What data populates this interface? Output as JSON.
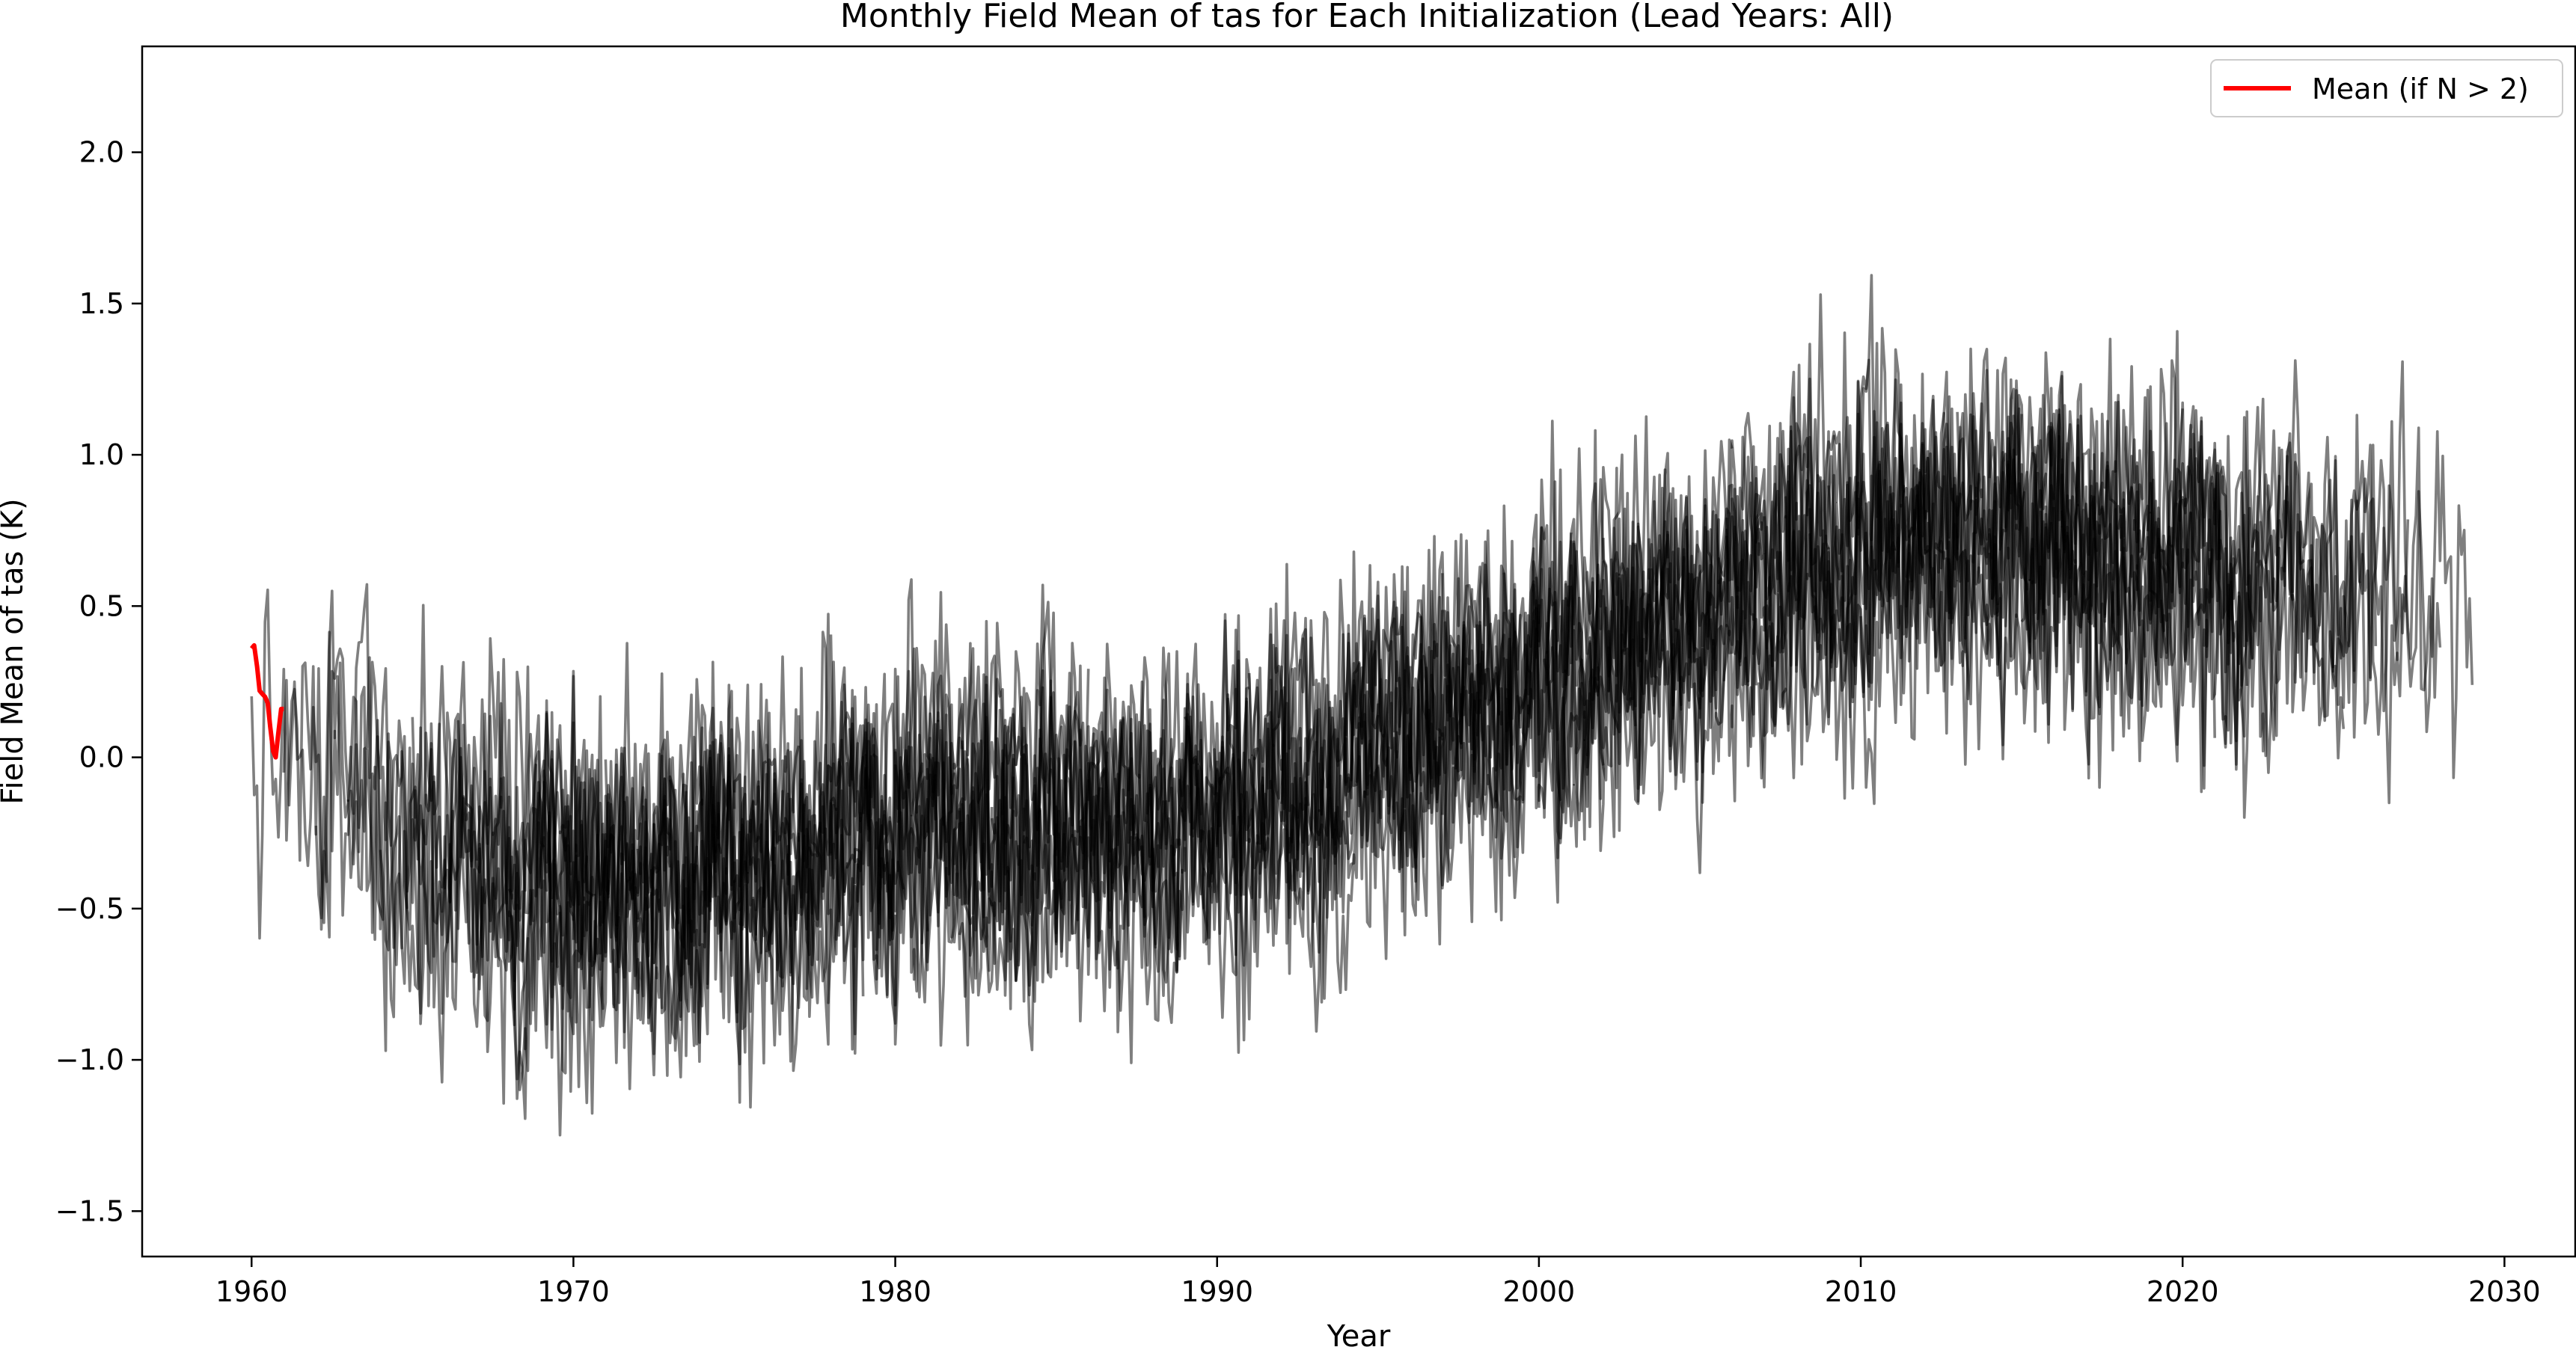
{
  "chart_data": {
    "type": "line",
    "title": "Monthly Field Mean of tas for Each Initialization (Lead Years: All)",
    "xlabel": "Year",
    "ylabel": "Field Mean of tas (K)",
    "xlim": [
      1956.6,
      2032.2
    ],
    "ylim": [
      -1.65,
      2.35
    ],
    "x_ticks": [
      1960,
      1970,
      1980,
      1990,
      2000,
      2010,
      2020,
      2030
    ],
    "y_ticks": [
      -1.5,
      -1.0,
      -0.5,
      0.0,
      0.5,
      1.0,
      1.5,
      2.0
    ],
    "y_tick_labels": [
      "−1.5",
      "−1.0",
      "−0.5",
      "0.0",
      "0.5",
      "1.0",
      "1.5",
      "2.0"
    ],
    "grid": false,
    "legend": {
      "position": "top-right",
      "entries": [
        {
          "label": "Mean (if N > 2)",
          "color": "#ff0000"
        }
      ]
    },
    "series_style": {
      "initialization_color": "#000000",
      "initialization_opacity": 0.5,
      "mean_color": "#ff0000"
    },
    "initializations": {
      "count": 60,
      "first_init_year": 1960,
      "years_per_run": 10,
      "monthly_values": true,
      "trend_anchor_points": [
        [
          1960,
          -0.05
        ],
        [
          1965,
          -0.25
        ],
        [
          1970,
          -0.45
        ],
        [
          1975,
          -0.35
        ],
        [
          1980,
          -0.2
        ],
        [
          1985,
          -0.25
        ],
        [
          1990,
          -0.15
        ],
        [
          1995,
          0.05
        ],
        [
          2000,
          0.25
        ],
        [
          2005,
          0.5
        ],
        [
          2010,
          0.7
        ],
        [
          2015,
          0.75
        ],
        [
          2020,
          0.65
        ],
        [
          2025,
          0.55
        ],
        [
          2029,
          0.45
        ]
      ]
    },
    "series": [
      {
        "name": "Mean (if N > 2)",
        "color": "#ff0000",
        "x": [
          1960.0,
          1960.08,
          1960.17,
          1960.25,
          1960.33,
          1960.42,
          1960.5,
          1960.58,
          1960.67,
          1960.75,
          1960.83,
          1960.92,
          1961.0
        ],
        "y": [
          0.36,
          0.37,
          0.3,
          0.22,
          0.21,
          0.2,
          0.18,
          0.1,
          0.02,
          0.0,
          0.08,
          0.16,
          0.16
        ]
      }
    ]
  }
}
